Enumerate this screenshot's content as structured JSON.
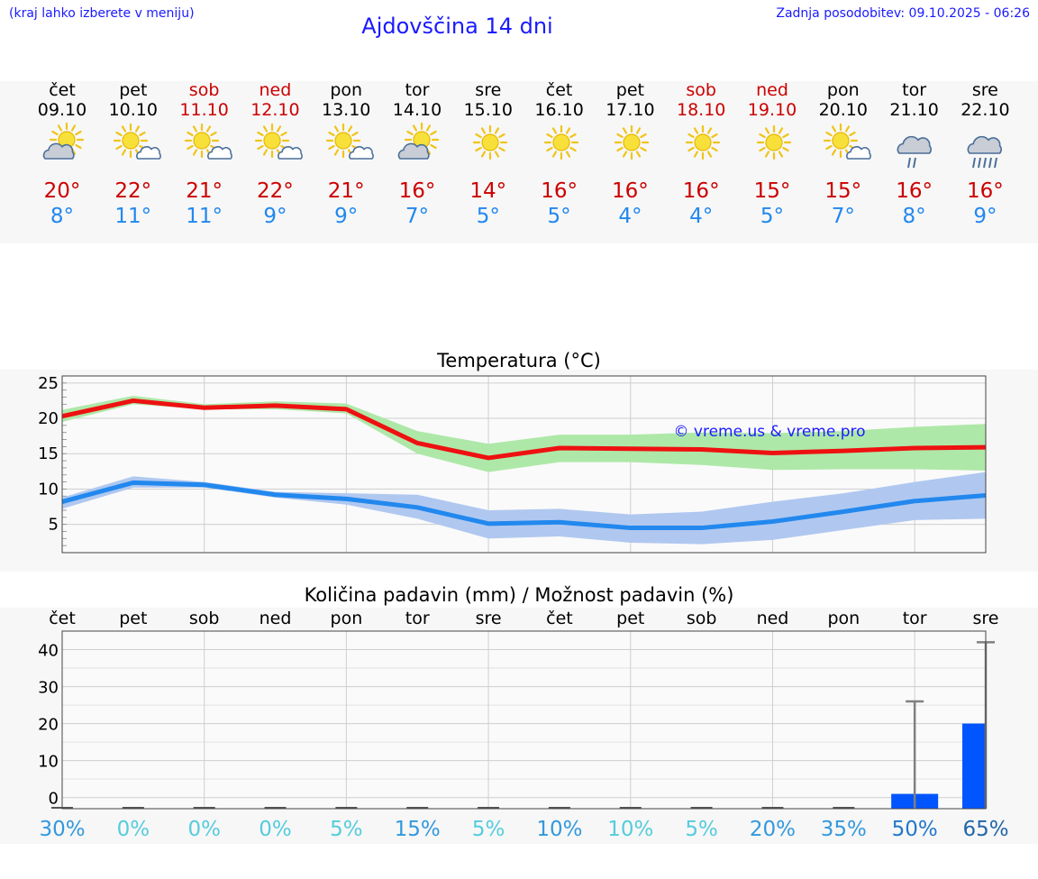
{
  "header": {
    "menu_hint": "(kraj lahko izberete v meniju)",
    "title": "Ajdovščina 14 dni",
    "updated": "Zadnja posodobitev: 09.10.2025 - 06:26"
  },
  "days": [
    {
      "name": "čet",
      "date": "09.10",
      "weekend": false,
      "icon": "partly-cloudy-sun-icon",
      "tmax": "20°",
      "tmin": "8°"
    },
    {
      "name": "pet",
      "date": "10.10",
      "weekend": false,
      "icon": "sun-small-cloud-icon",
      "tmax": "22°",
      "tmin": "11°"
    },
    {
      "name": "sob",
      "date": "11.10",
      "weekend": true,
      "icon": "sun-small-cloud-icon",
      "tmax": "21°",
      "tmin": "11°"
    },
    {
      "name": "ned",
      "date": "12.10",
      "weekend": true,
      "icon": "sun-small-cloud-icon",
      "tmax": "22°",
      "tmin": "9°"
    },
    {
      "name": "pon",
      "date": "13.10",
      "weekend": false,
      "icon": "sun-small-cloud-icon",
      "tmax": "21°",
      "tmin": "9°"
    },
    {
      "name": "tor",
      "date": "14.10",
      "weekend": false,
      "icon": "partly-cloudy-sun-icon",
      "tmax": "16°",
      "tmin": "7°"
    },
    {
      "name": "sre",
      "date": "15.10",
      "weekend": false,
      "icon": "sun-icon",
      "tmax": "14°",
      "tmin": "5°"
    },
    {
      "name": "čet",
      "date": "16.10",
      "weekend": false,
      "icon": "sun-icon",
      "tmax": "16°",
      "tmin": "5°"
    },
    {
      "name": "pet",
      "date": "17.10",
      "weekend": false,
      "icon": "sun-icon",
      "tmax": "16°",
      "tmin": "4°"
    },
    {
      "name": "sob",
      "date": "18.10",
      "weekend": true,
      "icon": "sun-icon",
      "tmax": "16°",
      "tmin": "4°"
    },
    {
      "name": "ned",
      "date": "19.10",
      "weekend": true,
      "icon": "sun-icon",
      "tmax": "15°",
      "tmin": "5°"
    },
    {
      "name": "pon",
      "date": "20.10",
      "weekend": false,
      "icon": "sun-small-cloud-icon",
      "tmax": "15°",
      "tmin": "7°"
    },
    {
      "name": "tor",
      "date": "21.10",
      "weekend": false,
      "icon": "cloud-rain-icon",
      "tmax": "16°",
      "tmin": "8°"
    },
    {
      "name": "sre",
      "date": "22.10",
      "weekend": false,
      "icon": "cloud-heavy-rain-icon",
      "tmax": "16°",
      "tmin": "9°"
    }
  ],
  "colors": {
    "max_line": "#ee1111",
    "max_band": "#aee8a8",
    "min_line": "#2288ee",
    "min_band": "#b0c8f0",
    "weekend": "#cc0000",
    "link": "#1a1aff",
    "bar": "#0055ff",
    "whisker": "#808080"
  },
  "chart_data": [
    {
      "type": "line",
      "title": "Temperatura (°C)",
      "watermark": "© vreme.us & vreme.pro",
      "ylim": [
        1,
        26
      ],
      "yticks": [
        5,
        10,
        15,
        20,
        25
      ],
      "x": [
        0,
        1,
        2,
        3,
        4,
        5,
        6,
        7,
        8,
        9,
        10,
        11,
        12,
        13
      ],
      "series": [
        {
          "name": "max",
          "values": [
            20.3,
            22.5,
            21.5,
            21.8,
            21.3,
            16.5,
            14.4,
            15.8,
            15.7,
            15.6,
            15.1,
            15.4,
            15.8,
            15.9
          ],
          "band_low": [
            19.5,
            22.0,
            21.3,
            21.3,
            20.7,
            15.0,
            12.4,
            13.8,
            13.8,
            13.4,
            12.7,
            12.8,
            12.8,
            12.6
          ],
          "band_high": [
            21.2,
            23.2,
            22.0,
            22.4,
            22.1,
            18.2,
            16.4,
            17.7,
            17.7,
            18.0,
            17.9,
            18.2,
            18.8,
            19.2
          ]
        },
        {
          "name": "min",
          "values": [
            8.2,
            10.9,
            10.6,
            9.2,
            8.6,
            7.4,
            5.1,
            5.3,
            4.5,
            4.5,
            5.4,
            6.8,
            8.3,
            9.1
          ],
          "band_low": [
            7.2,
            10.2,
            10.2,
            8.8,
            7.8,
            5.8,
            3.0,
            3.3,
            2.4,
            2.2,
            2.8,
            4.2,
            5.6,
            5.8
          ],
          "band_high": [
            8.8,
            11.8,
            11.0,
            9.6,
            9.4,
            9.2,
            7.0,
            7.2,
            6.4,
            6.8,
            8.2,
            9.4,
            11.0,
            12.4
          ]
        }
      ]
    },
    {
      "type": "bar",
      "title": "Količina padavin (mm) / Možnost padavin (%)",
      "categories": [
        "čet",
        "pet",
        "sob",
        "ned",
        "pon",
        "tor",
        "sre",
        "čet",
        "pet",
        "sob",
        "ned",
        "pon",
        "tor",
        "sre"
      ],
      "ylim": [
        -3,
        45
      ],
      "yticks": [
        0,
        10,
        20,
        30,
        40
      ],
      "values": [
        0,
        0,
        0,
        0,
        0,
        0,
        0,
        0,
        0,
        0,
        0,
        0,
        1,
        20
      ],
      "whisker_high": [
        null,
        null,
        null,
        null,
        null,
        null,
        null,
        null,
        null,
        null,
        null,
        null,
        26,
        42
      ],
      "probability": [
        "30%",
        "0%",
        "0%",
        "0%",
        "5%",
        "15%",
        "5%",
        "10%",
        "10%",
        "5%",
        "20%",
        "35%",
        "50%",
        "65%"
      ],
      "probability_colors": [
        "#3399dd",
        "#55ccdd",
        "#55ccdd",
        "#55ccdd",
        "#55ccdd",
        "#3399dd",
        "#55ccdd",
        "#3399dd",
        "#55ccdd",
        "#55ccdd",
        "#3399dd",
        "#3399dd",
        "#2277cc",
        "#2266aa"
      ]
    }
  ]
}
